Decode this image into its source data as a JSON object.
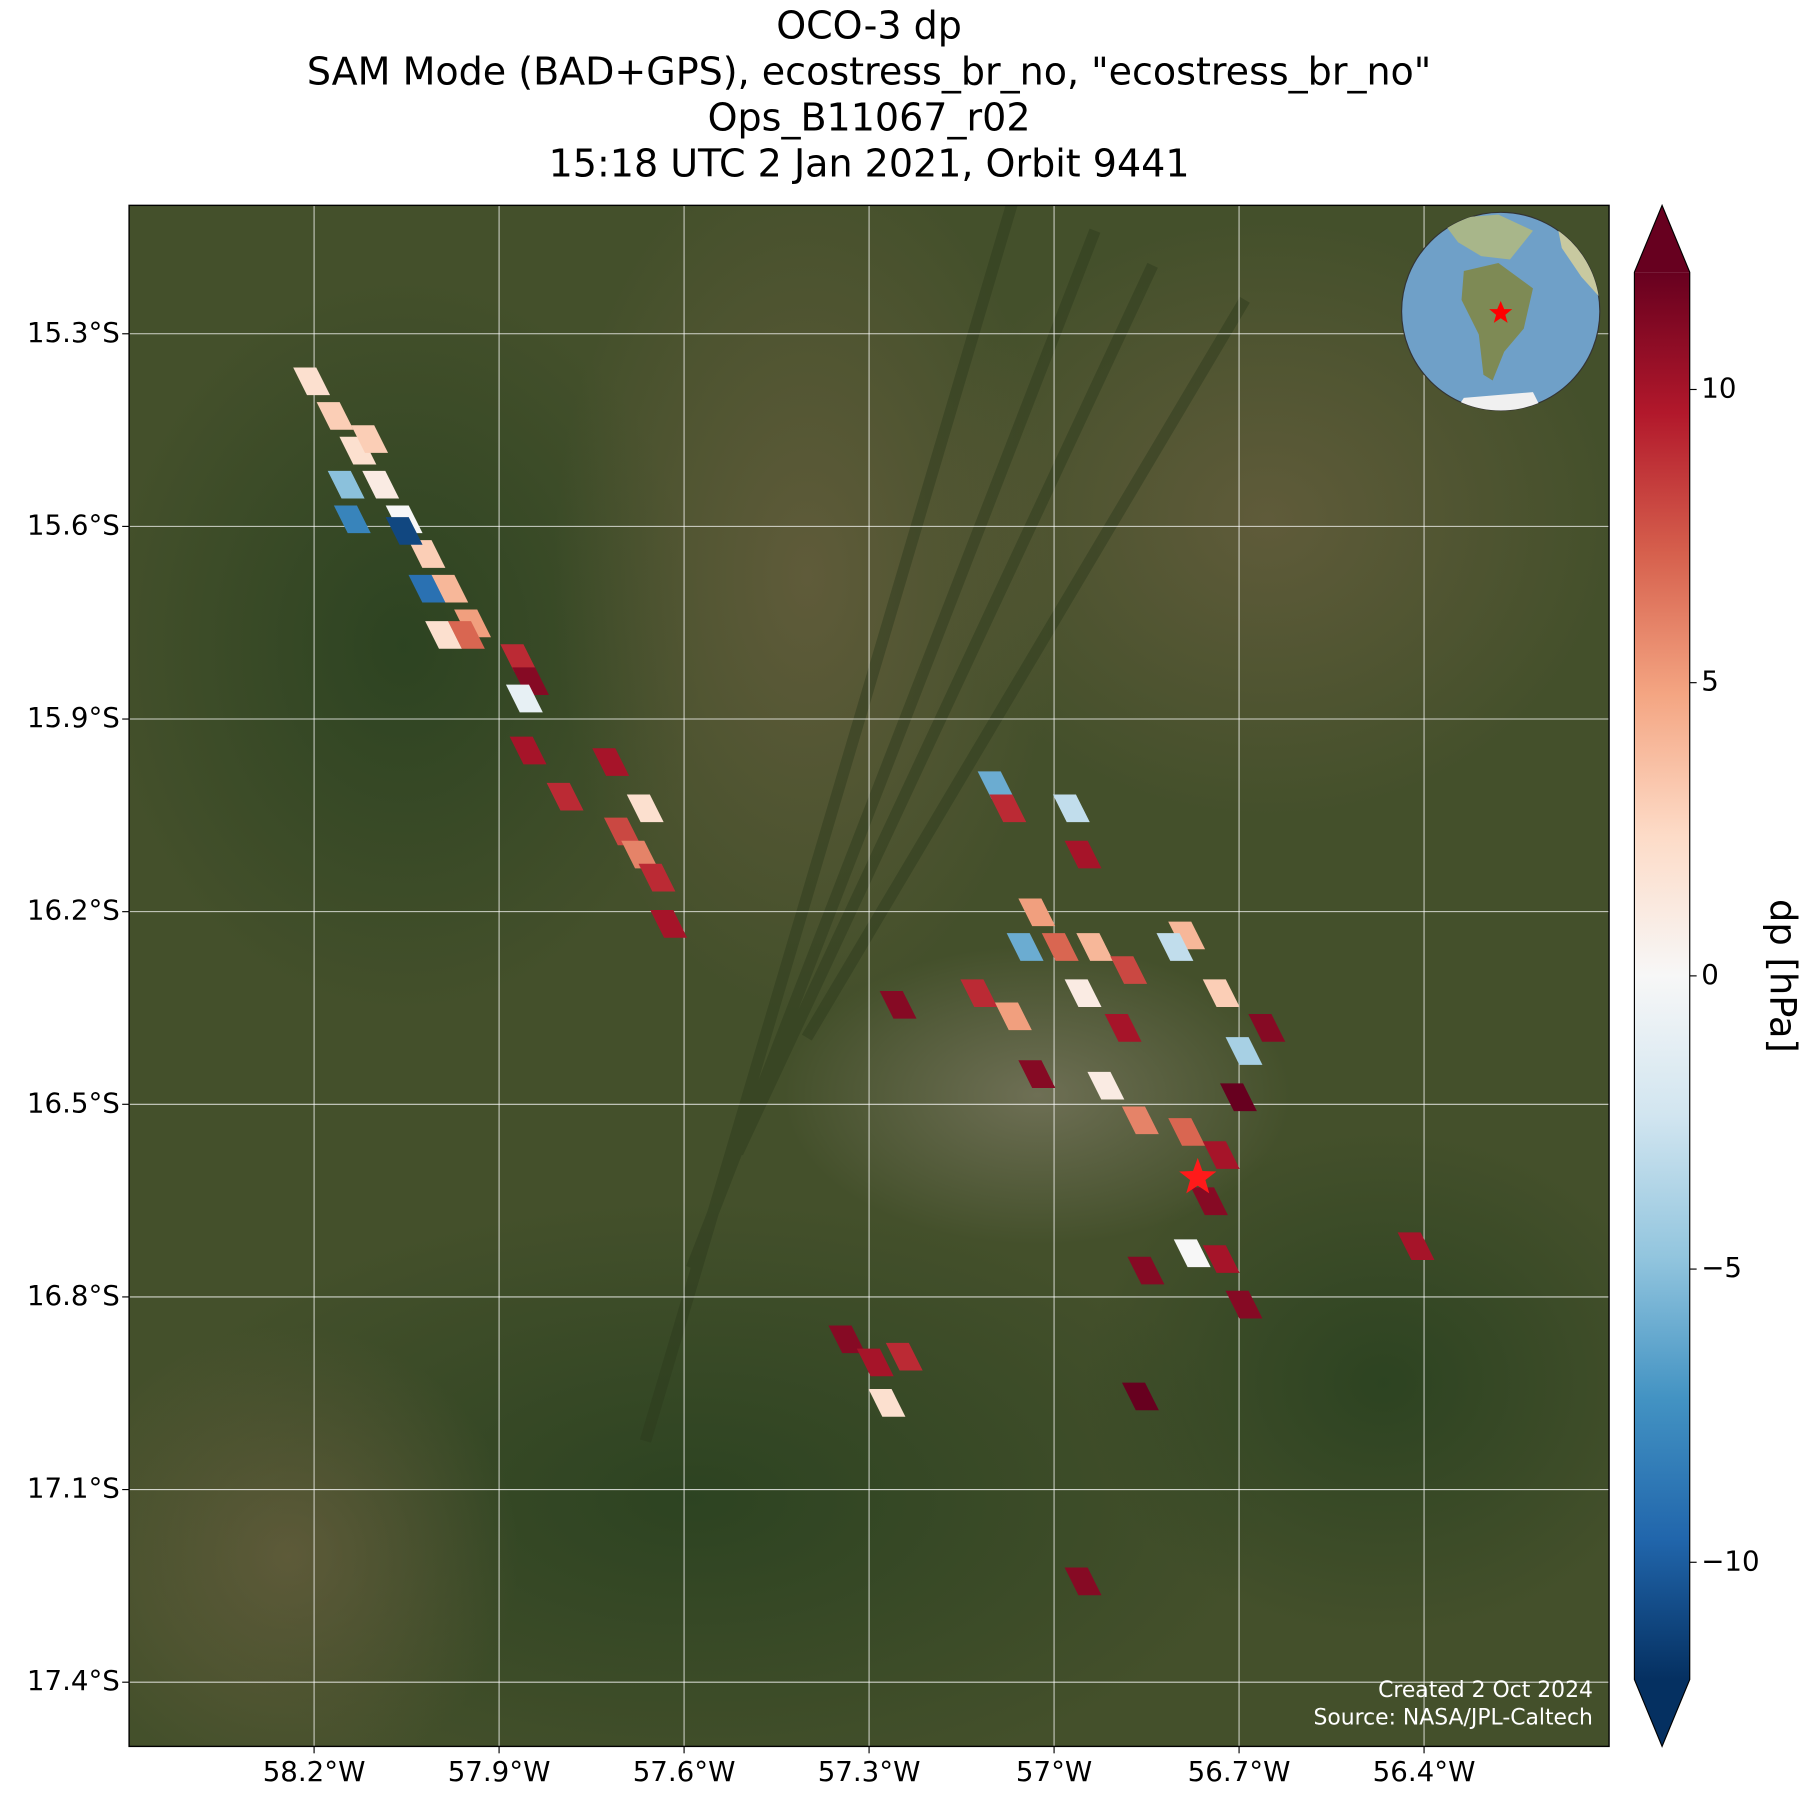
{
  "map": {
    "title": [
      "OCO-3 dp",
      "SAM Mode (BAD+GPS), ecostress_br_no, \"ecostress_br_no\"",
      "Ops_B11067_r02",
      "15:18 UTC 2 Jan 2021, Orbit 9441"
    ],
    "xlim": [
      -58.5,
      -56.1
    ],
    "ylim": [
      -17.5,
      -15.1
    ],
    "xticks": [
      {
        "value": -58.2,
        "label": "58.2°W"
      },
      {
        "value": -57.9,
        "label": "57.9°W"
      },
      {
        "value": -57.6,
        "label": "57.6°W"
      },
      {
        "value": -57.3,
        "label": "57.3°W"
      },
      {
        "value": -57.0,
        "label": "57°W"
      },
      {
        "value": -56.7,
        "label": "56.7°W"
      },
      {
        "value": -56.4,
        "label": "56.4°W"
      }
    ],
    "yticks": [
      {
        "value": -15.3,
        "label": "15.3°S"
      },
      {
        "value": -15.6,
        "label": "15.6°S"
      },
      {
        "value": -15.9,
        "label": "15.9°S"
      },
      {
        "value": -16.2,
        "label": "16.2°S"
      },
      {
        "value": -16.5,
        "label": "16.5°S"
      },
      {
        "value": -16.8,
        "label": "16.8°S"
      },
      {
        "value": -17.1,
        "label": "17.1°S"
      },
      {
        "value": -17.4,
        "label": "17.4°S"
      }
    ],
    "grid": true,
    "colormap": "RdBu_r",
    "colorbar": {
      "label": "dp [hPa]",
      "lim": [
        -12,
        12
      ],
      "ticks": [
        {
          "value": -10,
          "label": "−10"
        },
        {
          "value": -5,
          "label": "−5"
        },
        0,
        5,
        10
      ]
    },
    "soundings": {
      "lon": [
        -58.204,
        -58.166,
        -58.129,
        -58.092,
        -58.054,
        -58.017,
        -57.98,
        -57.943,
        -57.868,
        -57.849,
        -58.138,
        -58.054,
        -58.017,
        -58.148,
        -58.11,
        -57.99,
        -57.953,
        -57.859,
        -57.853,
        -57.793,
        -57.719,
        -57.7,
        -57.672,
        -57.644,
        -57.625,
        -57.663,
        -57.094,
        -57.075,
        -56.972,
        -56.953,
        -57.028,
        -56.99,
        -56.934,
        -57.047,
        -57.122,
        -57.066,
        -57.028,
        -56.953,
        -56.888,
        -56.785,
        -56.729,
        -56.655,
        -56.692,
        -56.916,
        -56.86,
        -56.785,
        -56.729,
        -56.748,
        -56.729,
        -56.776,
        -56.692,
        -56.851,
        -56.701,
        -57.253,
        -56.413,
        -56.804,
        -56.879,
        -57.336,
        -57.29,
        -57.271,
        -57.243,
        -56.86,
        -56.953
      ],
      "lat": [
        -15.374,
        -15.428,
        -15.482,
        -15.535,
        -15.589,
        -15.643,
        -15.697,
        -15.751,
        -15.805,
        -15.841,
        -15.589,
        -15.607,
        -15.697,
        -15.535,
        -15.464,
        -15.769,
        -15.769,
        -15.868,
        -15.949,
        -16.021,
        -15.967,
        -16.075,
        -16.111,
        -16.147,
        -16.219,
        -16.039,
        -16.003,
        -16.039,
        -16.039,
        -16.111,
        -16.201,
        -16.255,
        -16.255,
        -16.255,
        -16.327,
        -16.363,
        -16.453,
        -16.327,
        -16.381,
        -16.237,
        -16.327,
        -16.381,
        -16.417,
        -16.471,
        -16.525,
        -16.543,
        -16.579,
        -16.651,
        -16.741,
        -16.732,
        -16.812,
        -16.759,
        -16.489,
        -16.345,
        -16.721,
        -16.255,
        -16.291,
        -16.866,
        -16.902,
        -16.965,
        -16.893,
        -16.955,
        -17.243
      ],
      "dp": [
        2,
        3,
        2,
        1,
        0,
        3,
        4,
        5,
        9,
        11,
        -8,
        -11,
        -9,
        -5,
        3,
        2,
        7,
        -1,
        10,
        9,
        10,
        8,
        6,
        9,
        10,
        2,
        -6,
        9,
        -3,
        10,
        5,
        7,
        4,
        -6,
        9,
        5,
        11,
        1,
        10,
        4,
        3,
        11,
        -4,
        1,
        6,
        7,
        10,
        11,
        10,
        0,
        11,
        11,
        12,
        11,
        10,
        -3,
        8,
        11,
        10,
        2,
        9,
        12,
        11
      ]
    },
    "target": {
      "lon": -56.767,
      "lat": -16.614
    },
    "credits": [
      "Created 2 Oct 2024",
      "Source: NASA/JPL-Caltech"
    ]
  }
}
